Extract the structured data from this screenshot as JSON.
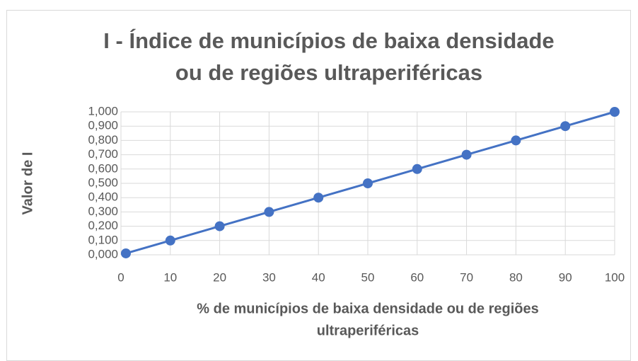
{
  "chart_data": {
    "type": "line",
    "title": [
      "I - Índice de municípios de baixa densidade",
      "ou de regiões ultraperiféricas"
    ],
    "xlabel": [
      "% de municípios de baixa densidade ou de regiões",
      "ultraperiféricas"
    ],
    "ylabel": "Valor de I",
    "x": [
      1,
      10,
      20,
      30,
      40,
      50,
      60,
      70,
      80,
      90,
      100
    ],
    "series": [
      {
        "name": "Valor de I",
        "color": "#4472c4",
        "values": [
          0.01,
          0.1,
          0.2,
          0.3,
          0.4,
          0.5,
          0.6,
          0.7,
          0.8,
          0.9,
          1.0
        ]
      }
    ],
    "xlim": [
      0,
      100
    ],
    "xticks": [
      0,
      10,
      20,
      30,
      40,
      50,
      60,
      70,
      80,
      90,
      100
    ],
    "ylim": [
      0,
      1
    ],
    "yticks": [
      {
        "value": 0,
        "label": "0,000"
      },
      {
        "value": 0.1,
        "label": "0,100"
      },
      {
        "value": 0.2,
        "label": "0,200"
      },
      {
        "value": 0.3,
        "label": "0,300"
      },
      {
        "value": 0.4,
        "label": "0,400"
      },
      {
        "value": 0.5,
        "label": "0,500"
      },
      {
        "value": 0.6,
        "label": "0,600"
      },
      {
        "value": 0.7,
        "label": "0,700"
      },
      {
        "value": 0.8,
        "label": "0,800"
      },
      {
        "value": 0.9,
        "label": "0,900"
      },
      {
        "value": 1.0,
        "label": "1,000"
      }
    ],
    "grid": true
  }
}
